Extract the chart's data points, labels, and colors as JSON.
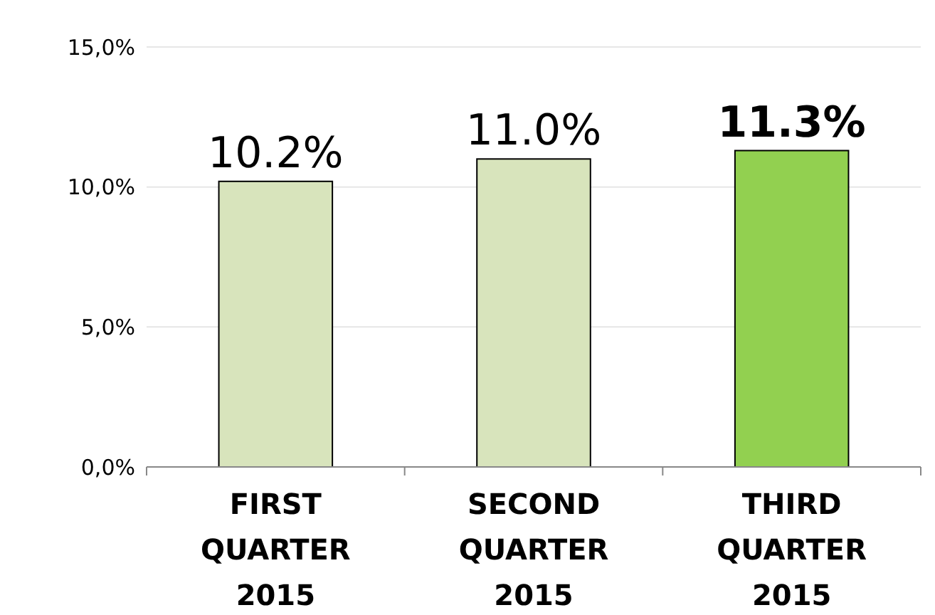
{
  "chart_data": {
    "type": "bar",
    "categories": [
      "FIRST QUARTER 2015",
      "SECOND QUARTER 2015",
      "THIRD QUARTER 2015"
    ],
    "values": [
      10.2,
      11.0,
      11.3
    ],
    "colors": [
      "#d8e4bc",
      "#d8e4bc",
      "#92d050"
    ],
    "value_labels": [
      "10.2%",
      "11.0%",
      "11.3%"
    ],
    "ylim": [
      0,
      15
    ],
    "yticks": [
      {
        "value": 0,
        "label": "0,0%"
      },
      {
        "value": 5,
        "label": "5,0%"
      },
      {
        "value": 10,
        "label": "10,0%"
      },
      {
        "value": 15,
        "label": "15,0%"
      }
    ],
    "grid": "y"
  }
}
